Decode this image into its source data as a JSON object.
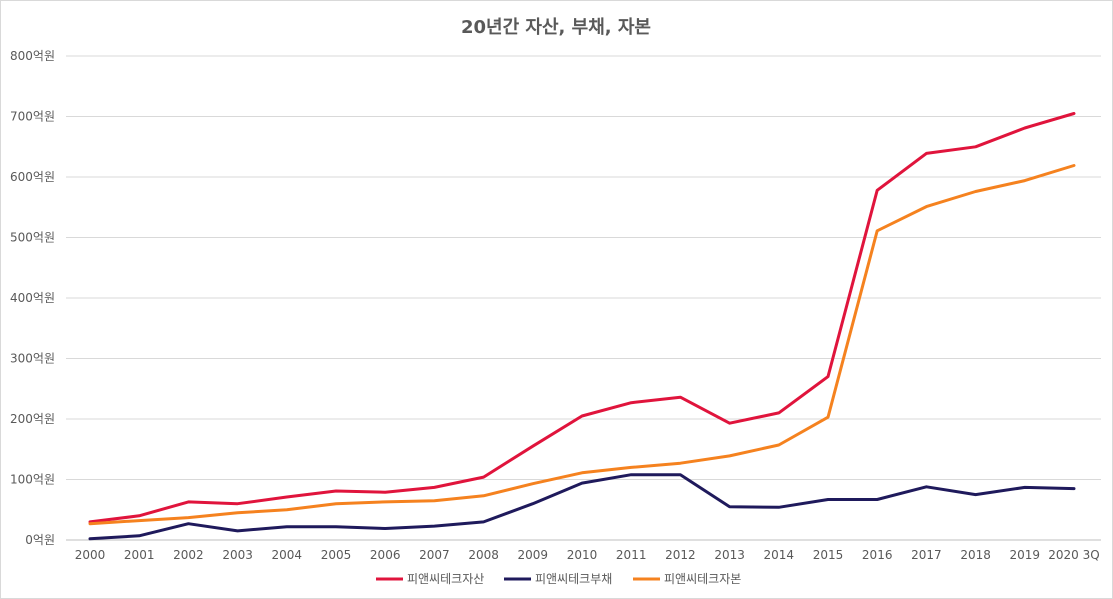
{
  "chart_data": {
    "type": "line",
    "title": "20년간 자산, 부채, 자본",
    "xlabel": "",
    "ylabel": "",
    "categories": [
      "2000",
      "2001",
      "2002",
      "2003",
      "2004",
      "2005",
      "2006",
      "2007",
      "2008",
      "2009",
      "2010",
      "2011",
      "2012",
      "2013",
      "2014",
      "2015",
      "2016",
      "2017",
      "2018",
      "2019",
      "2020 3Q"
    ],
    "y_tick_labels": [
      "0억원",
      "100억원",
      "200억원",
      "300억원",
      "400억원",
      "500억원",
      "600억원",
      "700억원",
      "800억원"
    ],
    "ylim": [
      0,
      800
    ],
    "grid": true,
    "legend_position": "bottom",
    "series": [
      {
        "name": "피앤씨테크자산",
        "color": "#e0143c",
        "values": [
          30,
          40,
          63,
          60,
          71,
          81,
          79,
          87,
          104,
          155,
          205,
          227,
          236,
          193,
          210,
          270,
          578,
          639,
          650,
          681,
          705
        ]
      },
      {
        "name": "피앤씨테크부채",
        "color": "#1f1a5c",
        "values": [
          2,
          7,
          27,
          15,
          22,
          22,
          19,
          23,
          30,
          60,
          94,
          108,
          108,
          55,
          54,
          67,
          67,
          88,
          75,
          87,
          85
        ]
      },
      {
        "name": "피앤씨테크자본",
        "color": "#f5821f",
        "values": [
          27,
          32,
          37,
          45,
          50,
          60,
          63,
          65,
          73,
          93,
          111,
          120,
          127,
          139,
          157,
          203,
          511,
          551,
          576,
          594,
          619
        ]
      }
    ]
  }
}
